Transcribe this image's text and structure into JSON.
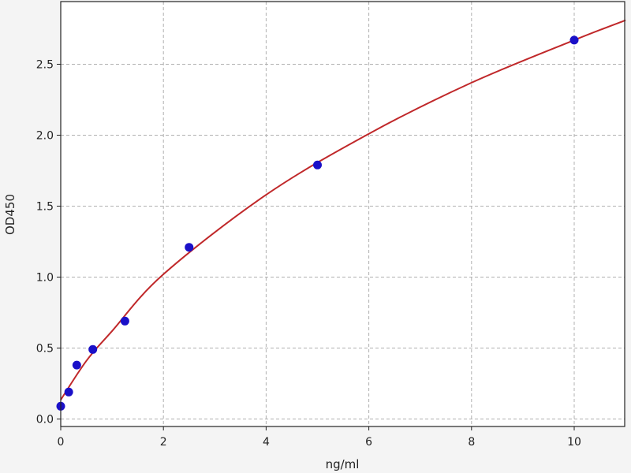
{
  "chart_data": {
    "type": "scatter",
    "title": "",
    "xlabel": "ng/ml",
    "ylabel": "OD450",
    "xlim": [
      0,
      11
    ],
    "ylim": [
      -0.05,
      2.94
    ],
    "xticks": [
      "0",
      "2",
      "4",
      "6",
      "8",
      "10"
    ],
    "yticks": [
      "0.0",
      "0.5",
      "1.0",
      "1.5",
      "2.0",
      "2.5"
    ],
    "grid": true,
    "points": {
      "color": "#1a10c8",
      "x": [
        0,
        0.156,
        0.3125,
        0.625,
        1.25,
        2.5,
        5,
        10
      ],
      "y": [
        0.09,
        0.19,
        0.38,
        0.49,
        0.69,
        1.21,
        1.79,
        2.67
      ]
    },
    "fit_curve": {
      "color": "#c0282a",
      "x": [
        0,
        0.5,
        1,
        2,
        4,
        6,
        8,
        10,
        11
      ],
      "y": [
        0.135,
        0.41,
        0.62,
        1.02,
        1.58,
        2.01,
        2.37,
        2.67,
        2.81
      ]
    }
  }
}
